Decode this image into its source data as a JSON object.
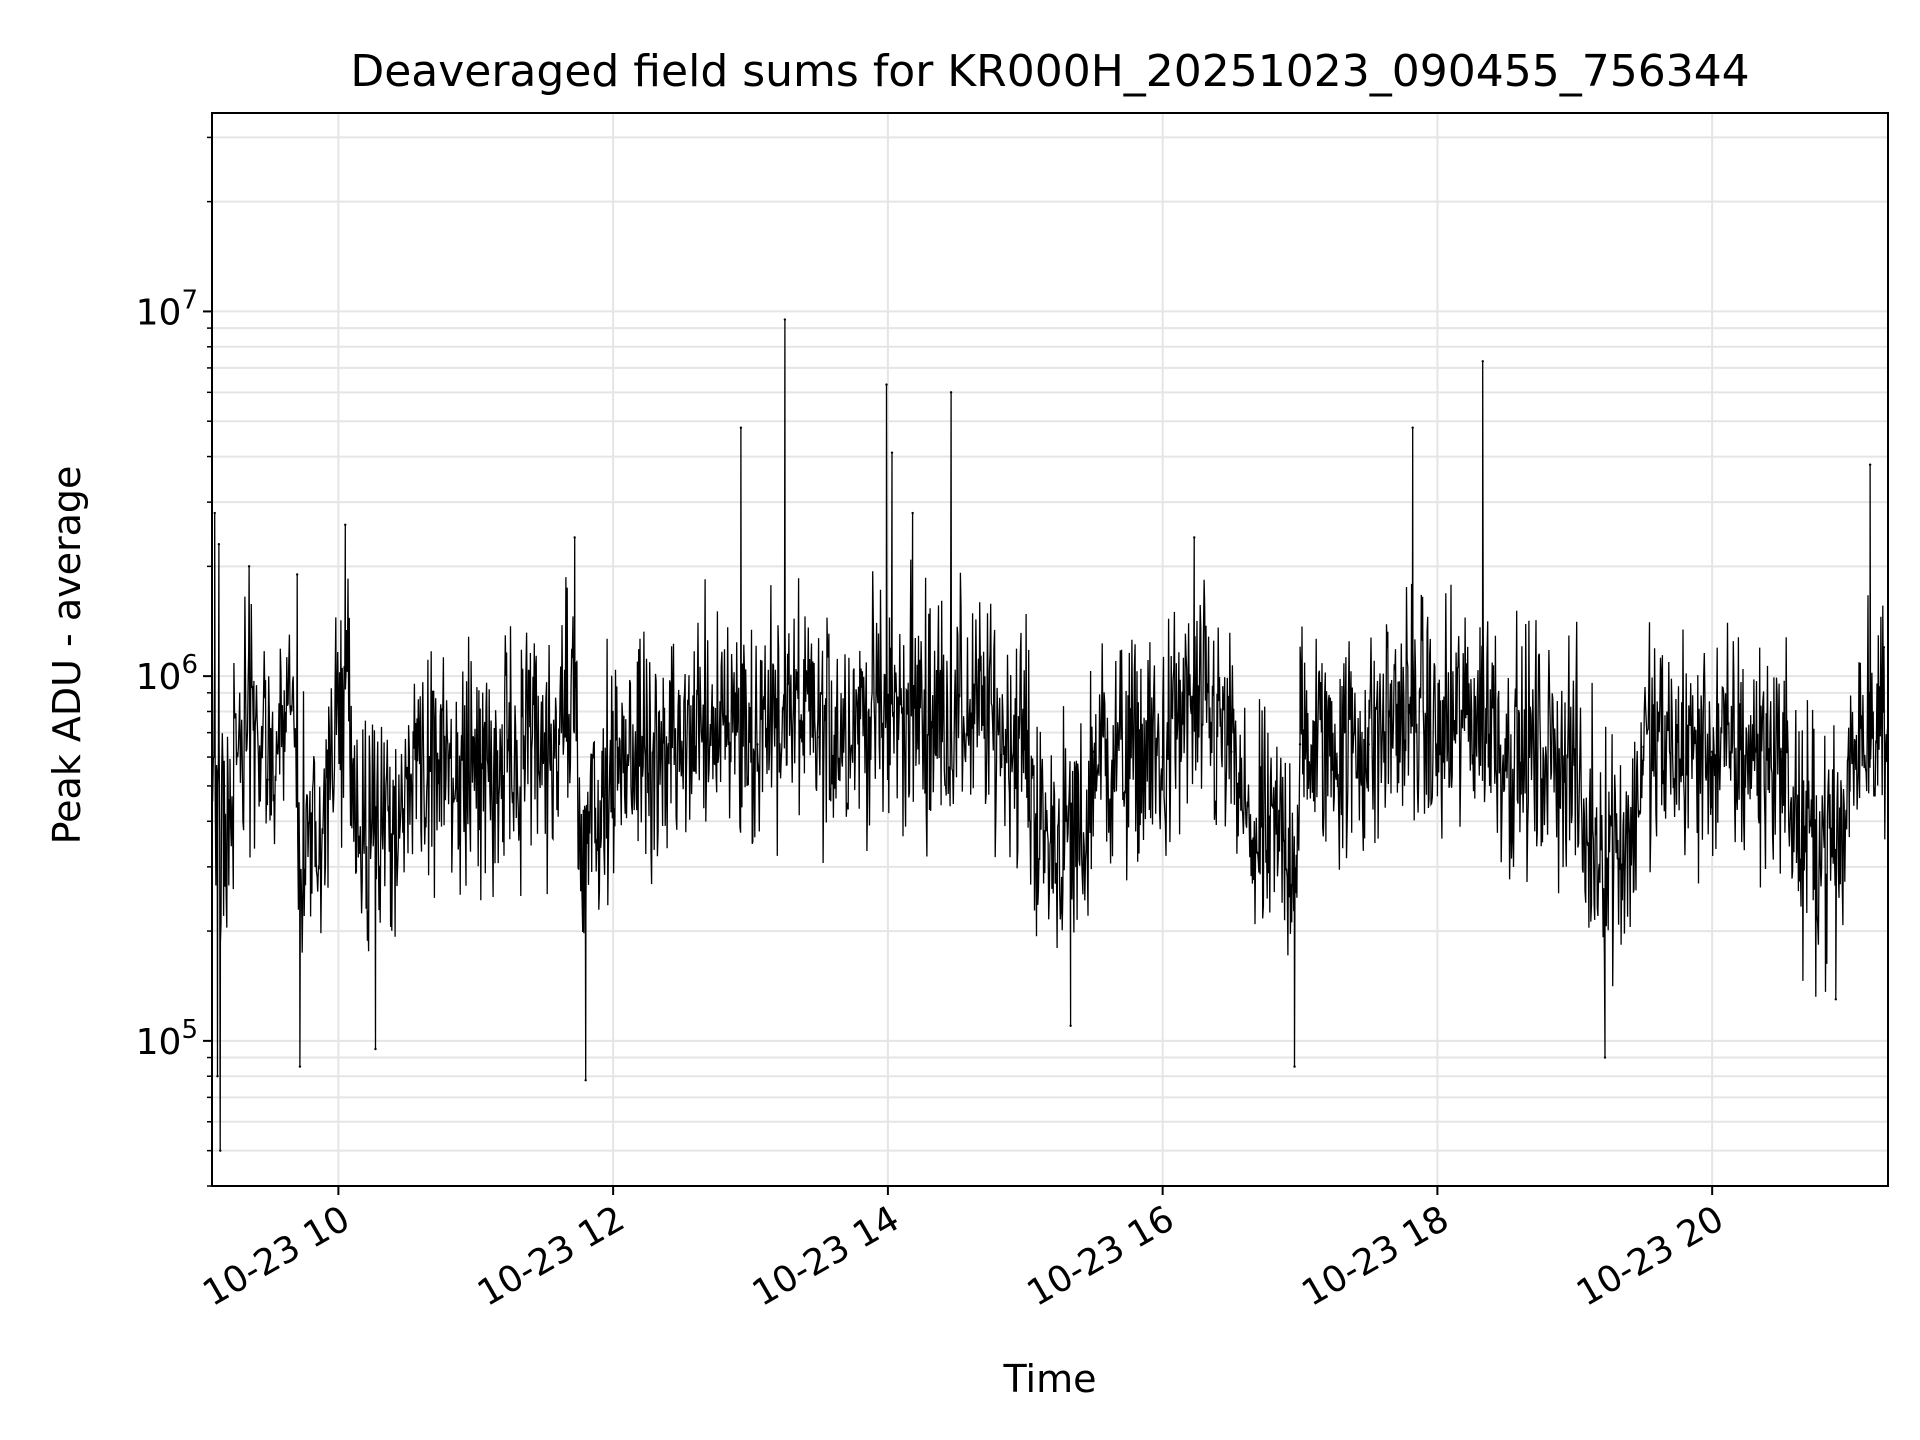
{
  "chart_data": {
    "type": "line",
    "title": "Deaveraged field sums for KR000H_20251023_090455_756344",
    "xlabel": "Time",
    "ylabel": "Peak ADU - average",
    "y_scale": "log",
    "xlim": [
      9.08,
      21.28
    ],
    "ylim": [
      40000,
      35000000
    ],
    "x_unit": "hour of day, 2025-10-23",
    "x_ticks": [
      {
        "value": 10,
        "label": "10-23 10"
      },
      {
        "value": 12,
        "label": "10-23 12"
      },
      {
        "value": 14,
        "label": "10-23 14"
      },
      {
        "value": 16,
        "label": "10-23 16"
      },
      {
        "value": 18,
        "label": "10-23 18"
      },
      {
        "value": 20,
        "label": "10-23 20"
      }
    ],
    "y_ticks": [
      {
        "value": 100000,
        "base": "10",
        "exp": "5"
      },
      {
        "value": 1000000,
        "base": "10",
        "exp": "6"
      },
      {
        "value": 10000000,
        "base": "10",
        "exp": "7"
      }
    ],
    "grid": true,
    "line_color": "#000000",
    "grid_color": "#e5e5e5",
    "series": [
      {
        "name": "Peak ADU - average",
        "x": [
          9.1,
          9.12,
          9.13,
          9.14,
          9.17,
          9.21,
          9.35,
          9.5,
          9.7,
          9.72,
          9.9,
          10.05,
          10.27,
          10.5,
          11.0,
          11.5,
          11.72,
          11.8,
          11.95,
          12.5,
          12.93,
          13.05,
          13.25,
          13.5,
          13.99,
          14.03,
          14.18,
          14.46,
          15.0,
          15.33,
          15.5,
          16.0,
          16.23,
          16.5,
          16.96,
          17.0,
          17.5,
          17.82,
          18.0,
          18.33,
          18.5,
          19.0,
          19.22,
          19.5,
          20.0,
          20.5,
          20.9,
          21.0,
          21.15,
          21.25
        ],
        "y": [
          2800000,
          80000,
          2300000,
          50000,
          500000,
          450000,
          2000000,
          520000,
          1900000,
          85000,
          500000,
          2600000,
          95000,
          560000,
          550000,
          600000,
          2400000,
          78000,
          600000,
          620000,
          4800000,
          650000,
          9500000,
          680000,
          6300000,
          4100000,
          2800000,
          6000000,
          650000,
          110000,
          620000,
          600000,
          2400000,
          620000,
          85000,
          650000,
          650000,
          4800000,
          650000,
          7300000,
          620000,
          600000,
          90000,
          640000,
          620000,
          620000,
          130000,
          600000,
          3800000,
          1200000
        ]
      }
    ]
  }
}
